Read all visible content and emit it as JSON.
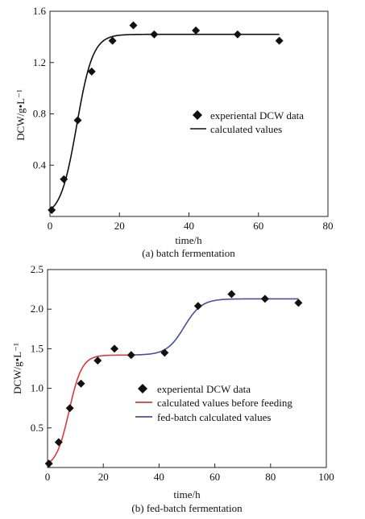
{
  "chart_data": [
    {
      "type": "scatter",
      "caption": "(a) batch fermentation",
      "xlabel": "time/h",
      "ylabel": "DCW/g•L⁻¹",
      "xlim": [
        0,
        80
      ],
      "ylim": [
        0,
        1.6
      ],
      "xticks": [
        "0",
        "20",
        "40",
        "60",
        "80"
      ],
      "yticks": [
        "0.4",
        "0.8",
        "1.2",
        "1.6"
      ],
      "ytick_values": [
        0.4,
        0.8,
        1.2,
        1.6
      ],
      "xtick_values": [
        0,
        20,
        40,
        60,
        80
      ],
      "grid": false,
      "legend_placement": "center-right",
      "series": [
        {
          "name": "experiental DCW data",
          "kind": "points",
          "marker": "diamond",
          "color": "#111111",
          "x": [
            0.5,
            4,
            8,
            12,
            18,
            24,
            30,
            42,
            54,
            66
          ],
          "y": [
            0.05,
            0.29,
            0.75,
            1.13,
            1.37,
            1.49,
            1.42,
            1.45,
            1.42,
            1.37
          ]
        },
        {
          "name": "calculated values",
          "kind": "line",
          "color": "#111111",
          "model": {
            "x0": 0.05,
            "xmax": 1.42,
            "mu": 0.43,
            "t_start": 0,
            "t_end": 66
          }
        }
      ]
    },
    {
      "type": "scatter",
      "caption": "(b) fed-batch fermentation",
      "xlabel": "time/h",
      "ylabel": "DCW/g•L⁻¹",
      "xlim": [
        0,
        100
      ],
      "ylim": [
        0,
        2.5
      ],
      "xticks": [
        "0",
        "20",
        "40",
        "60",
        "80",
        "100"
      ],
      "yticks": [
        "0.5",
        "1.0",
        "1.5",
        "2.0",
        "2.5"
      ],
      "ytick_values": [
        0.5,
        1.0,
        1.5,
        2.0,
        2.5
      ],
      "xtick_values": [
        0,
        20,
        40,
        60,
        80,
        100
      ],
      "grid": false,
      "legend_placement": "bottom-right",
      "series": [
        {
          "name": "experiental DCW data",
          "kind": "points",
          "marker": "diamond",
          "color": "#111111",
          "x": [
            0.5,
            4,
            8,
            12,
            18,
            24,
            30,
            42,
            54,
            66,
            78,
            90
          ],
          "y": [
            0.05,
            0.32,
            0.75,
            1.06,
            1.35,
            1.5,
            1.42,
            1.45,
            2.04,
            2.19,
            2.13,
            2.08
          ]
        },
        {
          "name": "calculated values before feeding",
          "kind": "line",
          "color": "#d63c3c",
          "model": {
            "x0": 0.05,
            "xmax": 1.42,
            "mu": 0.43,
            "t_start": 0,
            "t_end": 30
          }
        },
        {
          "name": "fed-batch calculated values",
          "kind": "line",
          "color": "#4a4ea3",
          "model": {
            "base": 1.42,
            "top": 2.13,
            "mid": 49,
            "k": 0.32,
            "t_start": 30,
            "t_end": 90
          }
        }
      ]
    }
  ]
}
